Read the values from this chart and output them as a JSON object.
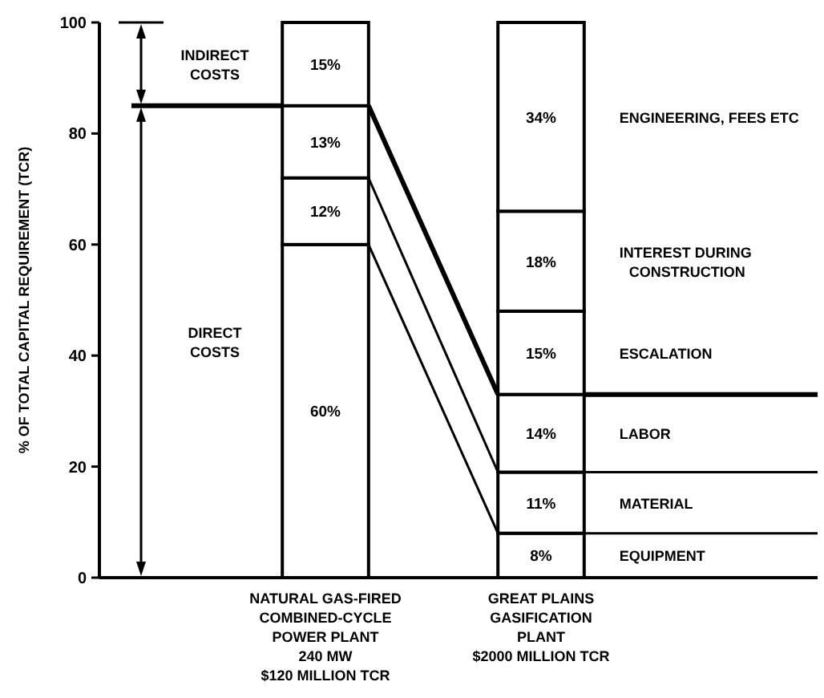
{
  "chart_data": {
    "type": "bar",
    "stacked": true,
    "ylabel": "% OF TOTAL CAPITAL REQUIREMENT (TCR)",
    "categories": [
      "NATURAL GAS-FIRED\nCOMBINED-CYCLE\nPOWER PLANT\n240 MW\n$120 MILLION TCR",
      "GREAT PLAINS\nGASIFICATION\nPLANT\n$2000 MILLION TCR"
    ],
    "series": [
      {
        "name": "EQUIPMENT",
        "color": "#ffffff",
        "values": [
          60,
          8
        ],
        "value_labels": [
          "60%",
          "8%"
        ]
      },
      {
        "name": "MATERIAL",
        "color": "#ffffff",
        "values": [
          12,
          11
        ],
        "value_labels": [
          "12%",
          "11%"
        ]
      },
      {
        "name": "LABOR",
        "color": "#ffffff",
        "values": [
          13,
          14
        ],
        "value_labels": [
          "13%",
          "14%"
        ]
      },
      {
        "name": "ESCALATION",
        "color": "#ffffff",
        "values": [
          15,
          15
        ],
        "value_labels": [
          "15%",
          "15%"
        ]
      },
      {
        "name": "INTEREST DURING CONSTRUCTION",
        "color": "#ffffff",
        "values": [
          null,
          18
        ],
        "value_labels": [
          null,
          "18%"
        ]
      },
      {
        "name": "ENGINEERING, FEES ETC",
        "color": "#ffffff",
        "values": [
          null,
          34
        ],
        "value_labels": [
          null,
          "34%"
        ]
      }
    ],
    "annotations": [
      "INDIRECT COSTS",
      "DIRECT COSTS"
    ],
    "ref_lines": [
      {
        "axis": "y",
        "value": 85
      },
      {
        "axis": "y",
        "value": 33
      },
      {
        "axis": "y",
        "value": 19
      },
      {
        "axis": "y",
        "value": 8
      }
    ],
    "ylim": [
      0,
      100
    ],
    "yticks": [
      0,
      20,
      40,
      60,
      80,
      100
    ]
  }
}
